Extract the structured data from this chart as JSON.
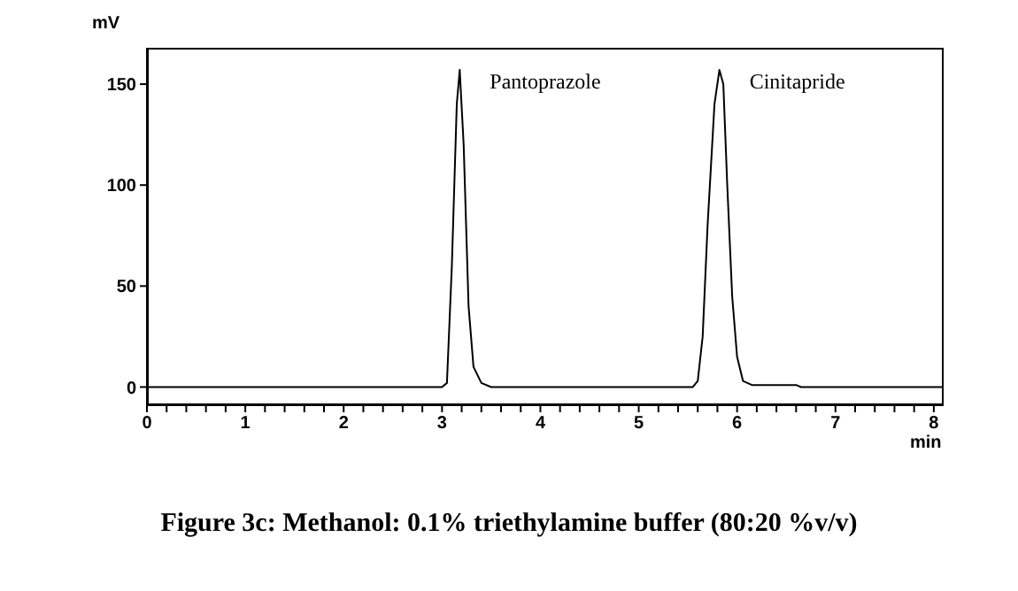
{
  "chart_data": {
    "type": "line",
    "title": "Figure 3c: Methanol: 0.1% triethylamine buffer (80:20 %v/v)",
    "xlabel": "min",
    "ylabel": "mV",
    "x": [
      0,
      3.0,
      3.05,
      3.1,
      3.15,
      3.18,
      3.22,
      3.27,
      3.32,
      3.4,
      3.5,
      5.55,
      5.6,
      5.65,
      5.7,
      5.77,
      5.82,
      5.86,
      5.9,
      5.95,
      6.0,
      6.06,
      6.15,
      6.6,
      6.65,
      8.1
    ],
    "series": [
      {
        "color": "#000000",
        "values": [
          0,
          0,
          2,
          60,
          140,
          157,
          120,
          40,
          10,
          2,
          0,
          0,
          3,
          25,
          80,
          140,
          157,
          150,
          100,
          45,
          15,
          3,
          1,
          1,
          0,
          0
        ]
      }
    ],
    "xlim": [
      0,
      8.1
    ],
    "ylim": [
      -9,
      168
    ],
    "xticks": [
      0,
      {
        "value": 0.2,
        "label": null
      },
      {
        "value": 0.4,
        "label": null
      },
      {
        "value": 0.6,
        "label": null
      },
      {
        "value": 0.8,
        "label": null
      },
      1,
      {
        "value": 1.2,
        "label": null
      },
      {
        "value": 1.4,
        "label": null
      },
      {
        "value": 1.6,
        "label": null
      },
      {
        "value": 1.8,
        "label": null
      },
      2,
      {
        "value": 2.2,
        "label": null
      },
      {
        "value": 2.4,
        "label": null
      },
      {
        "value": 2.6,
        "label": null
      },
      {
        "value": 2.8,
        "label": null
      },
      3,
      {
        "value": 3.2,
        "label": null
      },
      {
        "value": 3.4,
        "label": null
      },
      {
        "value": 3.6,
        "label": null
      },
      {
        "value": 3.8,
        "label": null
      },
      4,
      {
        "value": 4.2,
        "label": null
      },
      {
        "value": 4.4,
        "label": null
      },
      {
        "value": 4.6,
        "label": null
      },
      {
        "value": 4.8,
        "label": null
      },
      5,
      {
        "value": 5.2,
        "label": null
      },
      {
        "value": 5.4,
        "label": null
      },
      {
        "value": 5.6,
        "label": null
      },
      {
        "value": 5.8,
        "label": null
      },
      6,
      {
        "value": 6.2,
        "label": null
      },
      {
        "value": 6.4,
        "label": null
      },
      {
        "value": 6.6,
        "label": null
      },
      {
        "value": 6.8,
        "label": null
      },
      7,
      {
        "value": 7.2,
        "label": null
      },
      {
        "value": 7.4,
        "label": null
      },
      {
        "value": 7.6,
        "label": null
      },
      {
        "value": 7.8,
        "label": null
      },
      8
    ],
    "yticks": [
      0,
      50,
      100,
      150
    ],
    "annotations": [
      {
        "text": "Pantoprazole",
        "x": 3.18,
        "y": 157
      },
      {
        "text": "Cinitapride",
        "x": 5.82,
        "y": 157
      }
    ],
    "grid": false,
    "legend": false,
    "marker": "none",
    "line_style": "solid"
  }
}
